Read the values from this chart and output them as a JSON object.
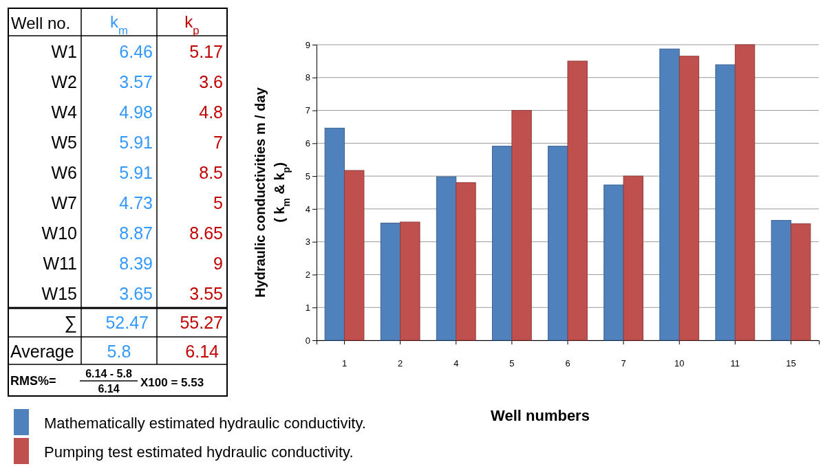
{
  "chart_data": {
    "type": "bar",
    "xlabel": "Well numbers",
    "ylabel": "Hydraulic conductivities m / day\n( k$_{m}$ & k$_{p}$)",
    "categories": [
      "1",
      "2",
      "4",
      "5",
      "6",
      "7",
      "10",
      "11",
      "15"
    ],
    "series": [
      {
        "name": "Mathematically estimated hydraulic conductivity.",
        "color": "#4f81bd",
        "values": [
          6.46,
          3.57,
          4.98,
          5.91,
          5.91,
          4.73,
          8.87,
          8.39,
          3.65
        ]
      },
      {
        "name": "Pumping test estimated  hydraulic conductivity.",
        "color": "#c0504d",
        "values": [
          5.17,
          3.6,
          4.8,
          7,
          8.5,
          5,
          8.65,
          9,
          3.55
        ]
      }
    ],
    "ylim": [
      0,
      9
    ],
    "yticks": [
      0,
      1,
      2,
      3,
      4,
      5,
      6,
      7,
      8,
      9
    ],
    "grid": "y",
    "legend": "bottom left",
    "annotations": [
      "Well no.",
      "k$_{m}$",
      "k$_{p}$",
      "W1",
      "6.46",
      "5.17",
      "W2",
      "3.57",
      "3.6",
      "W4",
      "4.98",
      "4.8",
      "W5",
      "5.91",
      "7",
      "W6",
      "5.91",
      "8.5",
      "W7",
      "4.73",
      "5",
      "W10",
      "8.87",
      "8.65",
      "W11",
      "8.39",
      "9",
      "W15",
      "3.65",
      "3.55",
      "∑",
      "52.47",
      "55.27",
      "Average",
      "5.8",
      "6.14",
      "RMS%=",
      "6.14 - 5.8",
      "6.14",
      "X100 = 5.53"
    ]
  }
}
